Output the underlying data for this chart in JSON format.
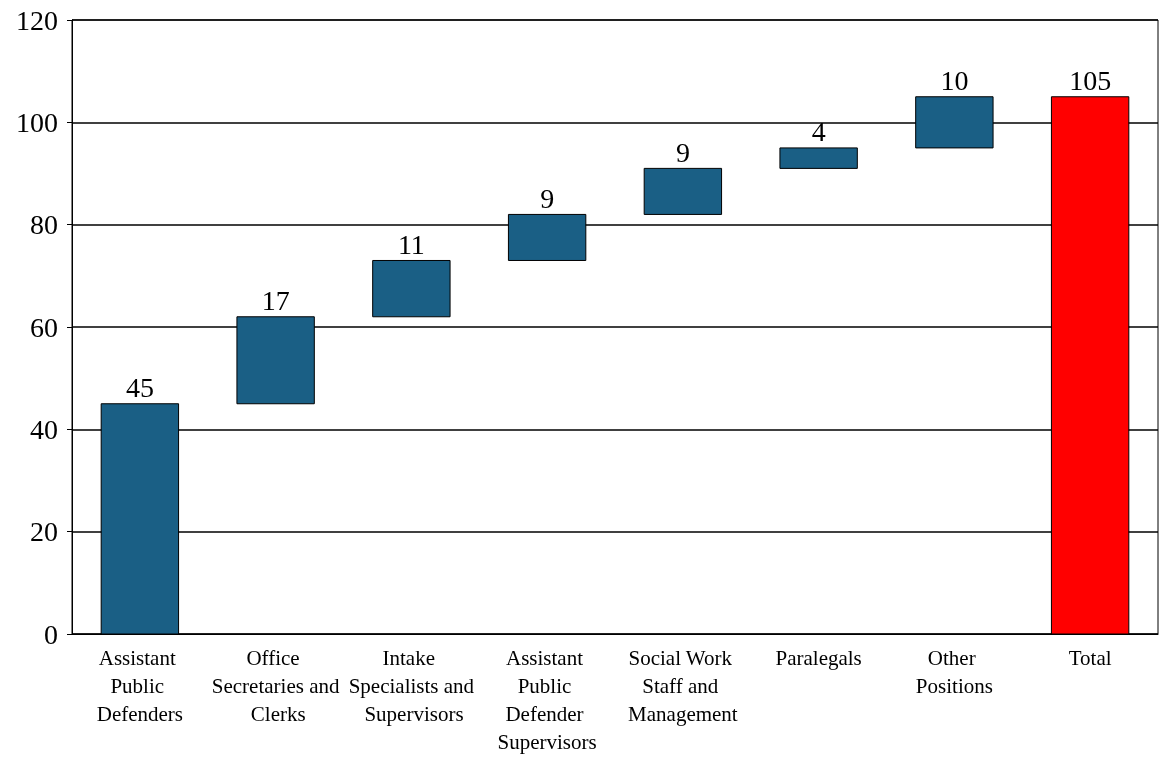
{
  "chart_data": {
    "type": "bar",
    "categories": [
      "Assistant Public Defenders",
      "Office Secretaries and Clerks",
      "Intake Specialists and Supervisors",
      "Assistant Public Defender Supervisors",
      "Social Work Staff and Management",
      "Paralegals",
      "Other Positions",
      "Total"
    ],
    "values": [
      45,
      17,
      11,
      9,
      9,
      4,
      10,
      105
    ],
    "base": [
      0,
      45,
      62,
      73,
      82,
      91,
      95,
      0
    ],
    "colors": [
      "#1a5f85",
      "#1a5f85",
      "#1a5f85",
      "#1a5f85",
      "#1a5f85",
      "#1a5f85",
      "#1a5f85",
      "#ff0000"
    ],
    "data_labels": true,
    "ylim": [
      0,
      120
    ],
    "yticks": [
      0,
      20,
      40,
      60,
      80,
      100,
      120
    ],
    "grid": "y"
  }
}
